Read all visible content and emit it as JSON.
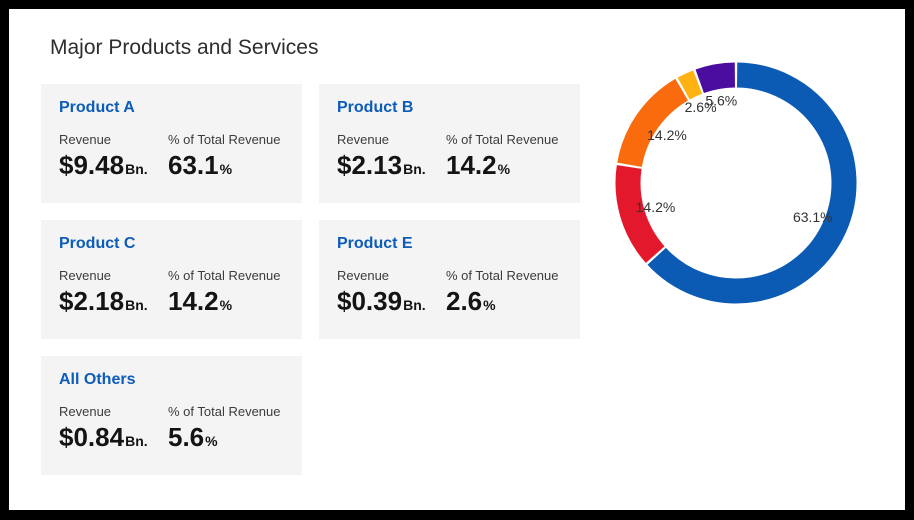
{
  "page": {
    "title": "Major Products and Services"
  },
  "cards": [
    {
      "name": "Product A",
      "revenue_label": "Revenue",
      "revenue_value": "$9.48",
      "revenue_unit": "Bn.",
      "percent_label": "% of Total Revenue",
      "percent_value": "63.1",
      "percent_unit": "%"
    },
    {
      "name": "Product B",
      "revenue_label": "Revenue",
      "revenue_value": "$2.13",
      "revenue_unit": "Bn.",
      "percent_label": "% of Total Revenue",
      "percent_value": "14.2",
      "percent_unit": "%"
    },
    {
      "name": "Product C",
      "revenue_label": "Revenue",
      "revenue_value": "$2.18",
      "revenue_unit": "Bn.",
      "percent_label": "% of Total Revenue",
      "percent_value": "14.2",
      "percent_unit": "%"
    },
    {
      "name": "Product E",
      "revenue_label": "Revenue",
      "revenue_value": "$0.39",
      "revenue_unit": "Bn.",
      "percent_label": "% of Total Revenue",
      "percent_value": "2.6",
      "percent_unit": "%"
    },
    {
      "name": "All Others",
      "revenue_label": "Revenue",
      "revenue_value": "$0.84",
      "revenue_unit": "Bn.",
      "percent_label": "% of Total Revenue",
      "percent_value": "5.6",
      "percent_unit": "%"
    }
  ],
  "chart_data": {
    "type": "pie",
    "subtype": "donut",
    "labels": [
      "Product A",
      "Product B",
      "Product C",
      "Product E",
      "All Others"
    ],
    "values": [
      63.1,
      14.2,
      14.2,
      2.6,
      5.6
    ],
    "unit": "%",
    "visible_segment_labels": [
      "63.1%",
      "14.2%",
      "14.2%",
      "2.6%",
      "5.6%"
    ],
    "colors": [
      "#0b5ab4",
      "#e4182c",
      "#f96b0d",
      "#feb313",
      "#4b0da0"
    ],
    "start_angle_deg": 0,
    "direction": "clockwise",
    "legend": "none",
    "labels_position": "inside",
    "segment_gap_color": "#ffffff"
  },
  "theme": {
    "accent_blue": "#0d5cb8",
    "card_background": "#f4f4f4",
    "frame_color": "#000000",
    "title_color": "#2e2e2e",
    "value_color": "#141414",
    "label_color": "#3c3c3c"
  }
}
